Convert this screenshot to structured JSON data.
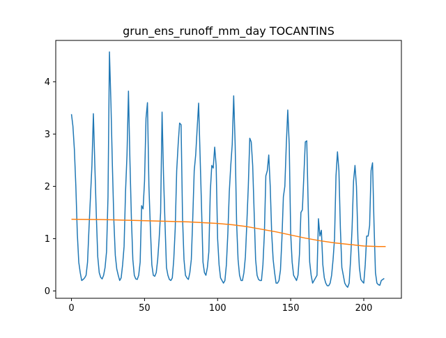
{
  "chart_data": {
    "type": "line",
    "title": "grun_ens_runoff_mm_day TOCANTINS",
    "xlabel": "",
    "ylabel": "",
    "xlim": [
      -10.75,
      225.75
    ],
    "ylim": [
      -0.14,
      4.79
    ],
    "xticks": [
      0,
      50,
      100,
      150,
      200
    ],
    "yticks": [
      0,
      1,
      2,
      3,
      4
    ],
    "grid": false,
    "legend": "none",
    "colors": {
      "series_1": "#1f77b4",
      "series_2": "#ff7f0e",
      "axes": "#000000",
      "background": "#ffffff"
    },
    "series": [
      {
        "values": [
          3.38,
          3.15,
          2.7,
          2.0,
          1.1,
          0.55,
          0.35,
          0.2,
          0.22,
          0.25,
          0.3,
          0.55,
          1.2,
          1.8,
          2.4,
          3.39,
          2.4,
          1.45,
          0.65,
          0.35,
          0.26,
          0.23,
          0.3,
          0.45,
          0.75,
          1.8,
          4.57,
          3.6,
          2.4,
          1.35,
          0.68,
          0.42,
          0.3,
          0.2,
          0.25,
          0.5,
          0.85,
          1.9,
          2.6,
          3.82,
          2.5,
          1.4,
          0.6,
          0.3,
          0.23,
          0.22,
          0.3,
          0.55,
          1.63,
          1.57,
          2.1,
          3.3,
          3.6,
          2.0,
          1.2,
          0.5,
          0.3,
          0.28,
          0.35,
          0.6,
          1.0,
          1.5,
          3.42,
          2.2,
          1.3,
          0.45,
          0.3,
          0.22,
          0.2,
          0.25,
          0.6,
          1.2,
          2.3,
          2.8,
          3.21,
          3.18,
          1.4,
          0.6,
          0.3,
          0.25,
          0.22,
          0.35,
          0.6,
          1.4,
          2.3,
          2.6,
          3.1,
          3.59,
          2.6,
          1.6,
          0.55,
          0.35,
          0.3,
          0.45,
          0.75,
          1.9,
          2.4,
          2.35,
          2.75,
          2.4,
          1.0,
          0.5,
          0.25,
          0.2,
          0.15,
          0.2,
          0.5,
          1.1,
          1.9,
          2.4,
          2.8,
          3.73,
          2.8,
          1.3,
          0.6,
          0.3,
          0.2,
          0.2,
          0.35,
          0.65,
          1.3,
          2.0,
          2.92,
          2.85,
          2.4,
          1.5,
          0.6,
          0.3,
          0.22,
          0.2,
          0.2,
          0.5,
          1.1,
          2.2,
          2.3,
          2.6,
          2.0,
          1.1,
          0.6,
          0.35,
          0.15,
          0.15,
          0.2,
          0.4,
          1.0,
          1.8,
          2.0,
          2.8,
          3.46,
          2.8,
          1.1,
          0.55,
          0.3,
          0.25,
          0.2,
          0.3,
          0.7,
          1.5,
          1.55,
          2.2,
          2.85,
          2.87,
          1.6,
          0.55,
          0.3,
          0.15,
          0.2,
          0.25,
          0.3,
          1.38,
          1.05,
          1.16,
          0.5,
          0.25,
          0.15,
          0.1,
          0.1,
          0.15,
          0.3,
          0.6,
          1.0,
          2.2,
          2.66,
          2.3,
          1.2,
          0.45,
          0.3,
          0.15,
          0.1,
          0.07,
          0.15,
          0.6,
          1.2,
          2.1,
          2.4,
          2.0,
          1.0,
          0.45,
          0.22,
          0.18,
          0.15,
          0.5,
          1.05,
          1.05,
          1.25,
          2.3,
          2.45,
          1.3,
          0.35,
          0.15,
          0.12,
          0.11,
          0.2,
          0.22,
          0.24
        ]
      },
      {
        "values_by_x": [
          [
            0,
            1.37
          ],
          [
            20,
            1.365
          ],
          [
            40,
            1.35
          ],
          [
            60,
            1.335
          ],
          [
            80,
            1.32
          ],
          [
            100,
            1.29
          ],
          [
            110,
            1.265
          ],
          [
            120,
            1.23
          ],
          [
            130,
            1.18
          ],
          [
            140,
            1.13
          ],
          [
            150,
            1.07
          ],
          [
            160,
            1.01
          ],
          [
            170,
            0.96
          ],
          [
            180,
            0.92
          ],
          [
            190,
            0.89
          ],
          [
            200,
            0.86
          ],
          [
            210,
            0.85
          ],
          [
            215,
            0.85
          ]
        ]
      }
    ]
  }
}
